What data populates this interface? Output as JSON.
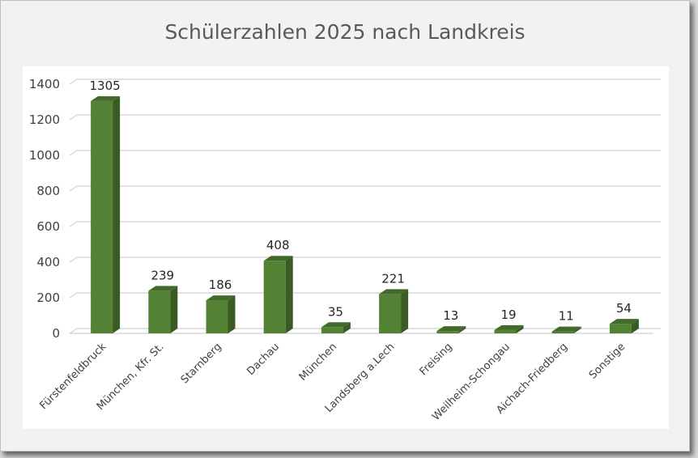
{
  "chart_data": {
    "type": "bar",
    "title": "Schülerzahlen 2025 nach Landkreis",
    "categories": [
      "Fürstenfeldbruck",
      "München, Kfr. St.",
      "Starnberg",
      "Dachau",
      "München",
      "Landsberg a.Lech",
      "Freising",
      "Weilheim-Schongau",
      "Aichach-Friedberg",
      "Sonstige"
    ],
    "values": [
      1305,
      239,
      186,
      408,
      35,
      221,
      13,
      19,
      11,
      54
    ],
    "ylim": [
      0,
      1400
    ],
    "yticks": [
      0,
      200,
      400,
      600,
      800,
      1000,
      1200,
      1400
    ],
    "grid": true,
    "legend": "none",
    "colors": {
      "bar_front": "#548235",
      "bar_side": "#3a5c24",
      "bar_top": "#43692b",
      "grid": "#d9d9d9"
    }
  }
}
